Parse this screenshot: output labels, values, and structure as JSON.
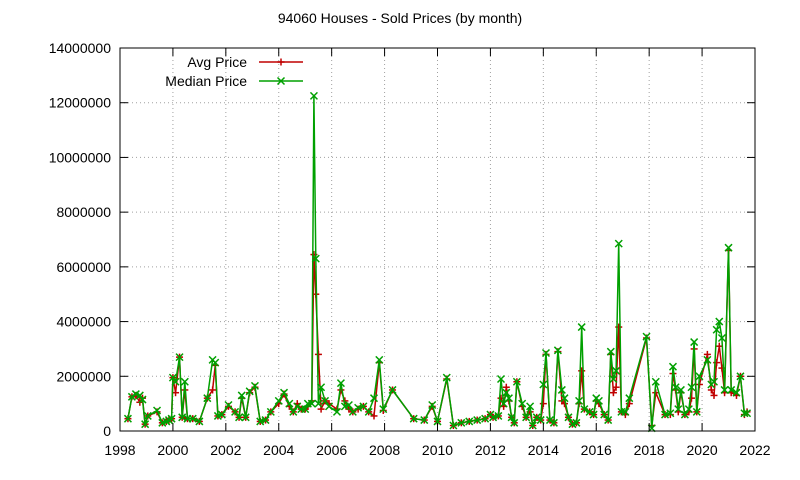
{
  "chart_data": {
    "type": "line",
    "title": "94060 Houses - Sold Prices (by month)",
    "xlabel": "",
    "ylabel": "",
    "xlim": [
      1998,
      2022
    ],
    "ylim": [
      0,
      14000000
    ],
    "x_ticks": [
      1998,
      2000,
      2002,
      2004,
      2006,
      2008,
      2010,
      2012,
      2014,
      2016,
      2018,
      2020,
      2022
    ],
    "y_ticks": [
      0,
      2000000,
      4000000,
      6000000,
      8000000,
      10000000,
      12000000,
      14000000
    ],
    "grid": true,
    "legend_position": "top-left",
    "series": [
      {
        "name": "Avg Price",
        "color": "#c00000",
        "marker": "plus",
        "points": [
          [
            1998.3,
            450000
          ],
          [
            1998.45,
            1250000
          ],
          [
            1998.6,
            1300000
          ],
          [
            1998.75,
            1050000
          ],
          [
            1998.85,
            1200000
          ],
          [
            1998.95,
            250000
          ],
          [
            1999.05,
            550000
          ],
          [
            1999.4,
            700000
          ],
          [
            1999.6,
            300000
          ],
          [
            1999.75,
            350000
          ],
          [
            1999.85,
            400000
          ],
          [
            1999.95,
            450000
          ],
          [
            2000.0,
            1950000
          ],
          [
            2000.1,
            1400000
          ],
          [
            2000.25,
            2700000
          ],
          [
            2000.35,
            500000
          ],
          [
            2000.45,
            1500000
          ],
          [
            2000.55,
            450000
          ],
          [
            2000.75,
            450000
          ],
          [
            2001.0,
            350000
          ],
          [
            2001.3,
            1200000
          ],
          [
            2001.5,
            1500000
          ],
          [
            2001.6,
            2400000
          ],
          [
            2001.7,
            550000
          ],
          [
            2001.85,
            600000
          ],
          [
            2002.1,
            900000
          ],
          [
            2002.35,
            700000
          ],
          [
            2002.5,
            500000
          ],
          [
            2002.6,
            1200000
          ],
          [
            2002.75,
            500000
          ],
          [
            2002.9,
            1400000
          ],
          [
            2003.1,
            1600000
          ],
          [
            2003.3,
            350000
          ],
          [
            2003.5,
            400000
          ],
          [
            2003.7,
            700000
          ],
          [
            2004.0,
            1000000
          ],
          [
            2004.2,
            1350000
          ],
          [
            2004.4,
            900000
          ],
          [
            2004.55,
            700000
          ],
          [
            2004.7,
            1000000
          ],
          [
            2004.85,
            800000
          ],
          [
            2005.0,
            800000
          ],
          [
            2005.1,
            900000
          ],
          [
            2005.25,
            1100000
          ],
          [
            2005.33,
            6450000
          ],
          [
            2005.4,
            5000000
          ],
          [
            2005.5,
            2800000
          ],
          [
            2005.6,
            800000
          ],
          [
            2005.75,
            1100000
          ],
          [
            2005.9,
            1000000
          ],
          [
            2006.2,
            800000
          ],
          [
            2006.35,
            1500000
          ],
          [
            2006.5,
            1100000
          ],
          [
            2006.65,
            800000
          ],
          [
            2006.8,
            700000
          ],
          [
            2007.0,
            800000
          ],
          [
            2007.2,
            900000
          ],
          [
            2007.4,
            700000
          ],
          [
            2007.6,
            550000
          ],
          [
            2007.8,
            2500000
          ],
          [
            2007.95,
            750000
          ],
          [
            2008.3,
            1500000
          ],
          [
            2009.1,
            450000
          ],
          [
            2009.5,
            400000
          ],
          [
            2009.8,
            900000
          ],
          [
            2010.0,
            350000
          ],
          [
            2010.35,
            1900000
          ],
          [
            2010.6,
            200000
          ],
          [
            2010.9,
            300000
          ],
          [
            2011.2,
            350000
          ],
          [
            2011.5,
            400000
          ],
          [
            2011.8,
            450000
          ],
          [
            2012.0,
            600000
          ],
          [
            2012.1,
            500000
          ],
          [
            2012.3,
            550000
          ],
          [
            2012.4,
            1200000
          ],
          [
            2012.5,
            900000
          ],
          [
            2012.6,
            1600000
          ],
          [
            2012.7,
            1100000
          ],
          [
            2012.8,
            500000
          ],
          [
            2012.9,
            300000
          ],
          [
            2013.0,
            1800000
          ],
          [
            2013.2,
            900000
          ],
          [
            2013.35,
            500000
          ],
          [
            2013.5,
            700000
          ],
          [
            2013.6,
            200000
          ],
          [
            2013.75,
            500000
          ],
          [
            2013.9,
            400000
          ],
          [
            2014.0,
            1000000
          ],
          [
            2014.1,
            2800000
          ],
          [
            2014.25,
            400000
          ],
          [
            2014.4,
            300000
          ],
          [
            2014.55,
            2900000
          ],
          [
            2014.7,
            1100000
          ],
          [
            2014.8,
            1000000
          ],
          [
            2014.95,
            500000
          ],
          [
            2015.1,
            250000
          ],
          [
            2015.25,
            300000
          ],
          [
            2015.35,
            1000000
          ],
          [
            2015.45,
            2200000
          ],
          [
            2015.55,
            800000
          ],
          [
            2015.75,
            700000
          ],
          [
            2015.9,
            600000
          ],
          [
            2016.0,
            1100000
          ],
          [
            2016.1,
            1000000
          ],
          [
            2016.3,
            600000
          ],
          [
            2016.45,
            400000
          ],
          [
            2016.55,
            2800000
          ],
          [
            2016.65,
            1400000
          ],
          [
            2016.75,
            1600000
          ],
          [
            2016.85,
            3800000
          ],
          [
            2016.95,
            700000
          ],
          [
            2017.1,
            600000
          ],
          [
            2017.25,
            1000000
          ],
          [
            2017.9,
            3400000
          ],
          [
            2018.1,
            200000
          ],
          [
            2018.25,
            1400000
          ],
          [
            2018.6,
            600000
          ],
          [
            2018.8,
            600000
          ],
          [
            2018.9,
            2100000
          ],
          [
            2019.0,
            1500000
          ],
          [
            2019.1,
            700000
          ],
          [
            2019.2,
            1400000
          ],
          [
            2019.35,
            600000
          ],
          [
            2019.5,
            700000
          ],
          [
            2019.6,
            1200000
          ],
          [
            2019.7,
            3000000
          ],
          [
            2019.8,
            700000
          ],
          [
            2019.9,
            1700000
          ],
          [
            2020.2,
            2800000
          ],
          [
            2020.35,
            1500000
          ],
          [
            2020.45,
            1300000
          ],
          [
            2020.55,
            2500000
          ],
          [
            2020.65,
            3100000
          ],
          [
            2020.75,
            2300000
          ],
          [
            2020.85,
            1400000
          ],
          [
            2021.0,
            6600000
          ],
          [
            2021.1,
            1400000
          ],
          [
            2021.3,
            1300000
          ],
          [
            2021.45,
            2000000
          ],
          [
            2021.6,
            600000
          ],
          [
            2021.7,
            700000
          ]
        ]
      },
      {
        "name": "Median Price",
        "color": "#00a000",
        "marker": "x",
        "points": [
          [
            1998.3,
            450000
          ],
          [
            1998.45,
            1250000
          ],
          [
            1998.6,
            1350000
          ],
          [
            1998.75,
            1300000
          ],
          [
            1998.85,
            1150000
          ],
          [
            1998.95,
            250000
          ],
          [
            1999.05,
            550000
          ],
          [
            1999.4,
            750000
          ],
          [
            1999.6,
            300000
          ],
          [
            1999.75,
            350000
          ],
          [
            1999.85,
            400000
          ],
          [
            1999.95,
            450000
          ],
          [
            2000.0,
            1950000
          ],
          [
            2000.1,
            1800000
          ],
          [
            2000.25,
            2700000
          ],
          [
            2000.35,
            500000
          ],
          [
            2000.45,
            1800000
          ],
          [
            2000.55,
            450000
          ],
          [
            2000.75,
            450000
          ],
          [
            2001.0,
            350000
          ],
          [
            2001.3,
            1200000
          ],
          [
            2001.5,
            2600000
          ],
          [
            2001.6,
            2500000
          ],
          [
            2001.7,
            550000
          ],
          [
            2001.85,
            600000
          ],
          [
            2002.1,
            950000
          ],
          [
            2002.35,
            700000
          ],
          [
            2002.5,
            500000
          ],
          [
            2002.6,
            1300000
          ],
          [
            2002.75,
            500000
          ],
          [
            2002.9,
            1450000
          ],
          [
            2003.1,
            1650000
          ],
          [
            2003.3,
            350000
          ],
          [
            2003.5,
            400000
          ],
          [
            2003.7,
            700000
          ],
          [
            2004.0,
            1100000
          ],
          [
            2004.2,
            1400000
          ],
          [
            2004.4,
            1000000
          ],
          [
            2004.55,
            700000
          ],
          [
            2004.7,
            900000
          ],
          [
            2004.85,
            800000
          ],
          [
            2005.0,
            800000
          ],
          [
            2005.1,
            1000000
          ],
          [
            2005.25,
            1000000
          ],
          [
            2005.33,
            12250000
          ],
          [
            2005.4,
            6300000
          ],
          [
            2005.5,
            1000000
          ],
          [
            2005.6,
            1600000
          ],
          [
            2005.75,
            1100000
          ],
          [
            2005.9,
            900000
          ],
          [
            2006.2,
            700000
          ],
          [
            2006.35,
            1750000
          ],
          [
            2006.5,
            900000
          ],
          [
            2006.65,
            950000
          ],
          [
            2006.8,
            700000
          ],
          [
            2007.0,
            850000
          ],
          [
            2007.2,
            900000
          ],
          [
            2007.4,
            700000
          ],
          [
            2007.6,
            1200000
          ],
          [
            2007.8,
            2600000
          ],
          [
            2007.95,
            800000
          ],
          [
            2008.3,
            1500000
          ],
          [
            2009.1,
            450000
          ],
          [
            2009.5,
            400000
          ],
          [
            2009.8,
            950000
          ],
          [
            2010.0,
            350000
          ],
          [
            2010.35,
            1950000
          ],
          [
            2010.6,
            200000
          ],
          [
            2010.9,
            300000
          ],
          [
            2011.2,
            350000
          ],
          [
            2011.5,
            400000
          ],
          [
            2011.8,
            450000
          ],
          [
            2012.0,
            600000
          ],
          [
            2012.1,
            500000
          ],
          [
            2012.3,
            550000
          ],
          [
            2012.4,
            1900000
          ],
          [
            2012.5,
            1000000
          ],
          [
            2012.6,
            1400000
          ],
          [
            2012.7,
            1200000
          ],
          [
            2012.8,
            500000
          ],
          [
            2012.9,
            300000
          ],
          [
            2013.0,
            1800000
          ],
          [
            2013.2,
            1000000
          ],
          [
            2013.35,
            500000
          ],
          [
            2013.5,
            900000
          ],
          [
            2013.6,
            200000
          ],
          [
            2013.75,
            500000
          ],
          [
            2013.9,
            400000
          ],
          [
            2014.0,
            1700000
          ],
          [
            2014.1,
            2850000
          ],
          [
            2014.25,
            400000
          ],
          [
            2014.4,
            300000
          ],
          [
            2014.55,
            2950000
          ],
          [
            2014.7,
            1500000
          ],
          [
            2014.8,
            1200000
          ],
          [
            2014.95,
            500000
          ],
          [
            2015.1,
            250000
          ],
          [
            2015.25,
            300000
          ],
          [
            2015.35,
            1100000
          ],
          [
            2015.45,
            3800000
          ],
          [
            2015.55,
            800000
          ],
          [
            2015.75,
            700000
          ],
          [
            2015.9,
            600000
          ],
          [
            2016.0,
            1200000
          ],
          [
            2016.1,
            1100000
          ],
          [
            2016.3,
            600000
          ],
          [
            2016.45,
            400000
          ],
          [
            2016.55,
            2900000
          ],
          [
            2016.65,
            1900000
          ],
          [
            2016.75,
            2200000
          ],
          [
            2016.85,
            6850000
          ],
          [
            2016.95,
            700000
          ],
          [
            2017.1,
            700000
          ],
          [
            2017.25,
            1200000
          ],
          [
            2017.9,
            3450000
          ],
          [
            2018.1,
            100000
          ],
          [
            2018.25,
            1800000
          ],
          [
            2018.6,
            600000
          ],
          [
            2018.8,
            650000
          ],
          [
            2018.9,
            2350000
          ],
          [
            2019.0,
            1600000
          ],
          [
            2019.1,
            800000
          ],
          [
            2019.2,
            1500000
          ],
          [
            2019.35,
            600000
          ],
          [
            2019.5,
            800000
          ],
          [
            2019.6,
            1600000
          ],
          [
            2019.7,
            3250000
          ],
          [
            2019.8,
            700000
          ],
          [
            2019.9,
            2000000
          ],
          [
            2020.2,
            2600000
          ],
          [
            2020.35,
            1700000
          ],
          [
            2020.45,
            1800000
          ],
          [
            2020.55,
            3700000
          ],
          [
            2020.65,
            4000000
          ],
          [
            2020.75,
            3400000
          ],
          [
            2020.85,
            1500000
          ],
          [
            2021.0,
            6700000
          ],
          [
            2021.1,
            1500000
          ],
          [
            2021.3,
            1400000
          ],
          [
            2021.45,
            2000000
          ],
          [
            2021.6,
            650000
          ],
          [
            2021.7,
            650000
          ]
        ]
      }
    ]
  }
}
